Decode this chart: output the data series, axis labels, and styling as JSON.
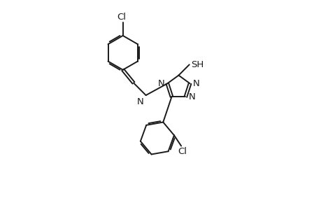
{
  "bg_color": "#ffffff",
  "line_color": "#1a1a1a",
  "line_width": 1.4,
  "font_size": 9.5,
  "figsize": [
    4.6,
    3.0
  ],
  "dpi": 100,
  "xlim": [
    0.5,
    8.5
  ],
  "ylim": [
    0.2,
    9.0
  ]
}
